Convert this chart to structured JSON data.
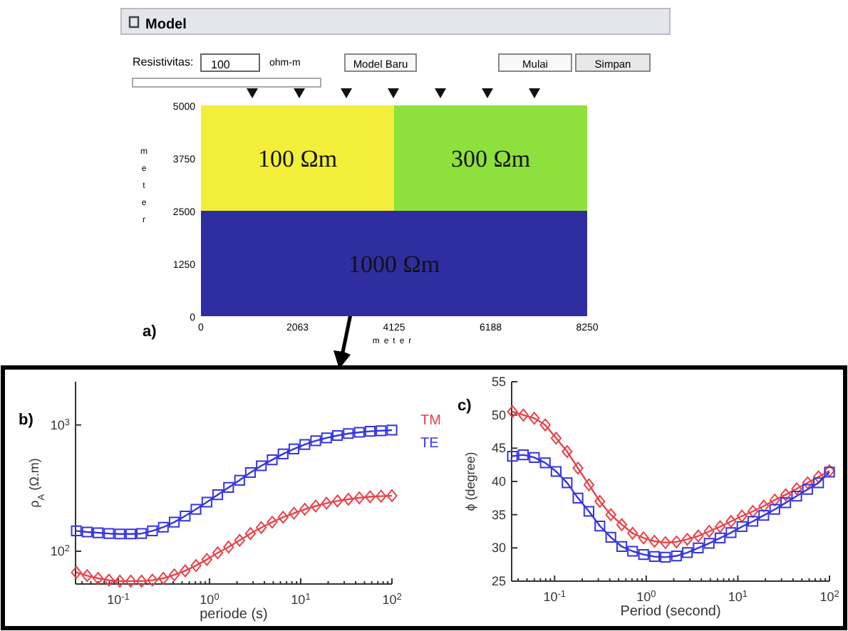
{
  "chart_data": [
    {
      "type": "bar",
      "stacked": true,
      "title": "Model",
      "xlabel": "meter",
      "ylabel": "meter",
      "x": [
        2062.5,
        6187.5
      ],
      "series": [
        {
          "color": "#2e2ea0",
          "values": [
            2500,
            2500
          ]
        },
        {
          "colors": [
            "#f2ee3a",
            "#8ee03c"
          ],
          "values": [
            2500,
            2500
          ]
        }
      ],
      "xlim": [
        0,
        8250
      ],
      "xticks": [
        0,
        2063,
        4125,
        6188,
        8250
      ],
      "ylim": [
        0,
        5000
      ],
      "yticks": [
        0,
        1250,
        2500,
        3750,
        5000
      ],
      "annotations": [
        "Resistivitas:",
        "100",
        "ohm-m",
        "Model Baru",
        "Mulai",
        "Simpan",
        "a)",
        "100 Ωm",
        "300 Ωm",
        "1000 Ωm"
      ]
    },
    {
      "type": "line",
      "xlabel": "periode (s)",
      "ylabel": "ρ$_{A}$ (Ω.m)",
      "log": "xy",
      "legend": "right",
      "annotations": [
        "b)"
      ],
      "x": [
        0.0347,
        0.0456,
        0.0601,
        0.0791,
        0.104,
        0.137,
        0.18,
        0.237,
        0.312,
        0.411,
        0.541,
        0.711,
        0.937,
        1.23,
        1.62,
        2.14,
        2.81,
        3.7,
        4.87,
        6.41,
        8.43,
        11.1,
        14.6,
        19.2,
        25.3,
        33.3,
        43.9,
        57.7,
        76,
        100
      ],
      "xlim": [
        0.034,
        100
      ],
      "xticks": [
        {
          "value": 0.04,
          "label": null
        },
        {
          "value": 0.05,
          "label": null
        },
        {
          "value": 0.06,
          "label": null
        },
        {
          "value": 0.07,
          "label": null
        },
        {
          "value": 0.08,
          "label": null
        },
        {
          "value": 0.09,
          "label": null
        },
        {
          "value": 0.1,
          "label": "10$^{-1}$"
        },
        {
          "value": 0.2,
          "label": null
        },
        {
          "value": 0.3,
          "label": null
        },
        {
          "value": 0.4,
          "label": null
        },
        {
          "value": 0.5,
          "label": null
        },
        {
          "value": 0.6,
          "label": null
        },
        {
          "value": 0.7,
          "label": null
        },
        {
          "value": 0.8,
          "label": null
        },
        {
          "value": 0.9,
          "label": null
        },
        {
          "value": 1,
          "label": "10$^{0}$"
        },
        {
          "value": 2,
          "label": null
        },
        {
          "value": 3,
          "label": null
        },
        {
          "value": 4,
          "label": null
        },
        {
          "value": 5,
          "label": null
        },
        {
          "value": 6,
          "label": null
        },
        {
          "value": 7,
          "label": null
        },
        {
          "value": 8,
          "label": null
        },
        {
          "value": 9,
          "label": null
        },
        {
          "value": 10,
          "label": "10$^{1}$"
        },
        {
          "value": 20,
          "label": null
        },
        {
          "value": 30,
          "label": null
        },
        {
          "value": 40,
          "label": null
        },
        {
          "value": 50,
          "label": null
        },
        {
          "value": 60,
          "label": null
        },
        {
          "value": 70,
          "label": null
        },
        {
          "value": 80,
          "label": null
        },
        {
          "value": 90,
          "label": null
        },
        {
          "value": 100,
          "label": "10$^{2}$"
        }
      ],
      "ylim": [
        55,
        2200
      ],
      "yticks": [
        {
          "value": 100,
          "label": "10$^{2}$"
        },
        {
          "value": 1000,
          "label": "10$^{3}$"
        }
      ],
      "series": [
        {
          "name": "TM",
          "color": "#e8434a",
          "marker": "diamond",
          "values": [
            68,
            64,
            61,
            59,
            58,
            58,
            58,
            59,
            61,
            65,
            70,
            77,
            86,
            97,
            108,
            122,
            138,
            154,
            170,
            186,
            200,
            215,
            228,
            240,
            250,
            258,
            265,
            270,
            273,
            275
          ]
        },
        {
          "name": "TE",
          "color": "#3535e0",
          "marker": "square",
          "values": [
            145,
            142,
            140,
            138,
            137,
            137,
            138,
            145,
            155,
            170,
            190,
            215,
            245,
            280,
            320,
            365,
            420,
            475,
            530,
            590,
            645,
            700,
            750,
            790,
            825,
            855,
            875,
            890,
            900,
            910
          ]
        }
      ]
    },
    {
      "type": "line",
      "xlabel": "Period (second)",
      "ylabel": "ϕ (degree)",
      "log": "x",
      "annotations": [
        "c)"
      ],
      "x": [
        0.0347,
        0.0456,
        0.0601,
        0.0791,
        0.104,
        0.137,
        0.18,
        0.237,
        0.312,
        0.411,
        0.541,
        0.711,
        0.937,
        1.23,
        1.62,
        2.14,
        2.81,
        3.7,
        4.87,
        6.41,
        8.43,
        11.1,
        14.6,
        19.2,
        25.3,
        33.3,
        43.9,
        57.7,
        76,
        100
      ],
      "xlim": [
        0.034,
        100
      ],
      "xticks": [
        {
          "value": 0.04,
          "label": null
        },
        {
          "value": 0.05,
          "label": null
        },
        {
          "value": 0.06,
          "label": null
        },
        {
          "value": 0.07,
          "label": null
        },
        {
          "value": 0.08,
          "label": null
        },
        {
          "value": 0.09,
          "label": null
        },
        {
          "value": 0.1,
          "label": "10$^{-1}$"
        },
        {
          "value": 0.2,
          "label": null
        },
        {
          "value": 0.3,
          "label": null
        },
        {
          "value": 0.4,
          "label": null
        },
        {
          "value": 0.5,
          "label": null
        },
        {
          "value": 0.6,
          "label": null
        },
        {
          "value": 0.7,
          "label": null
        },
        {
          "value": 0.8,
          "label": null
        },
        {
          "value": 0.9,
          "label": null
        },
        {
          "value": 1,
          "label": "10$^{0}$"
        },
        {
          "value": 2,
          "label": null
        },
        {
          "value": 3,
          "label": null
        },
        {
          "value": 4,
          "label": null
        },
        {
          "value": 5,
          "label": null
        },
        {
          "value": 6,
          "label": null
        },
        {
          "value": 7,
          "label": null
        },
        {
          "value": 8,
          "label": null
        },
        {
          "value": 9,
          "label": null
        },
        {
          "value": 10,
          "label": "10$^{1}$"
        },
        {
          "value": 20,
          "label": null
        },
        {
          "value": 30,
          "label": null
        },
        {
          "value": 40,
          "label": null
        },
        {
          "value": 50,
          "label": null
        },
        {
          "value": 60,
          "label": null
        },
        {
          "value": 70,
          "label": null
        },
        {
          "value": 80,
          "label": null
        },
        {
          "value": 90,
          "label": null
        },
        {
          "value": 100,
          "label": "10$^{2}$"
        }
      ],
      "ylim": [
        25,
        55
      ],
      "yticks": [
        25,
        30,
        35,
        40,
        45,
        50,
        55
      ],
      "series": [
        {
          "color": "#e8434a",
          "marker": "diamond",
          "values": [
            50.5,
            50,
            49.5,
            48.5,
            46.5,
            44.5,
            42,
            39.5,
            37,
            35,
            33.5,
            32.2,
            31.5,
            31,
            30.8,
            30.9,
            31.3,
            31.8,
            32.5,
            33.2,
            34,
            34.8,
            35.5,
            36.3,
            37.2,
            38,
            38.9,
            39.8,
            40.7,
            41.6
          ]
        },
        {
          "color": "#3535e0",
          "marker": "square",
          "values": [
            43.8,
            44,
            43.6,
            42.8,
            41.5,
            39.8,
            37.5,
            35.5,
            33.3,
            31.6,
            30.2,
            29.5,
            29,
            28.7,
            28.6,
            28.8,
            29.3,
            30,
            30.7,
            31.5,
            32.3,
            33.2,
            34,
            34.9,
            35.8,
            36.8,
            37.8,
            38.8,
            39.8,
            41.4
          ]
        }
      ]
    }
  ]
}
